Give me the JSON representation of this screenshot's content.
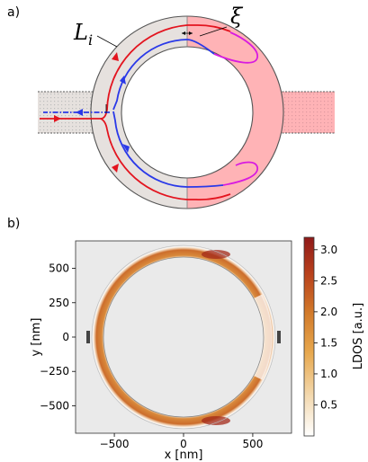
{
  "panel_a": {
    "label": "a)",
    "symbol_L": "L",
    "symbol_L_sub": "i",
    "symbol_xi": "ξ",
    "colors": {
      "ring_fill": "#e6e1de",
      "pink_fill": "#ffb3b6",
      "outline": "#555555",
      "red_path": "#e3141f",
      "blue_path": "#2a39e8",
      "magenta_path": "#d81be0",
      "lead_pattern": "#9a9a9a"
    }
  },
  "panel_b": {
    "label": "b)",
    "chart_data": {
      "type": "heatmap",
      "title": "",
      "xlabel": "x [nm]",
      "ylabel": "y [nm]",
      "xticks": [
        -500,
        0,
        500
      ],
      "xtick_labels": [
        "−500",
        "0",
        "500"
      ],
      "yticks": [
        500,
        250,
        0,
        -250,
        -500
      ],
      "ytick_labels": [
        "500",
        "250",
        "0",
        "−250",
        "−500"
      ],
      "xlim": [
        -780,
        780
      ],
      "ylim": [
        -700,
        700
      ],
      "ring_inner_radius_nm": 580,
      "ring_outer_radius_nm": 660,
      "colorbar": {
        "label": "LDOS [a.u.]",
        "ticks": [
          0.5,
          1.0,
          1.5,
          2.0,
          2.5,
          3.0
        ],
        "tick_labels": [
          "0.5",
          "1.0",
          "1.5",
          "2.0",
          "2.5",
          "3.0"
        ],
        "range": [
          0.0,
          3.2
        ],
        "colormap": [
          "#ffffff",
          "#f3d9b0",
          "#e7a84e",
          "#d27a2a",
          "#b8401c",
          "#8f1a1a"
        ]
      },
      "background_color": "#eaeaea"
    }
  }
}
